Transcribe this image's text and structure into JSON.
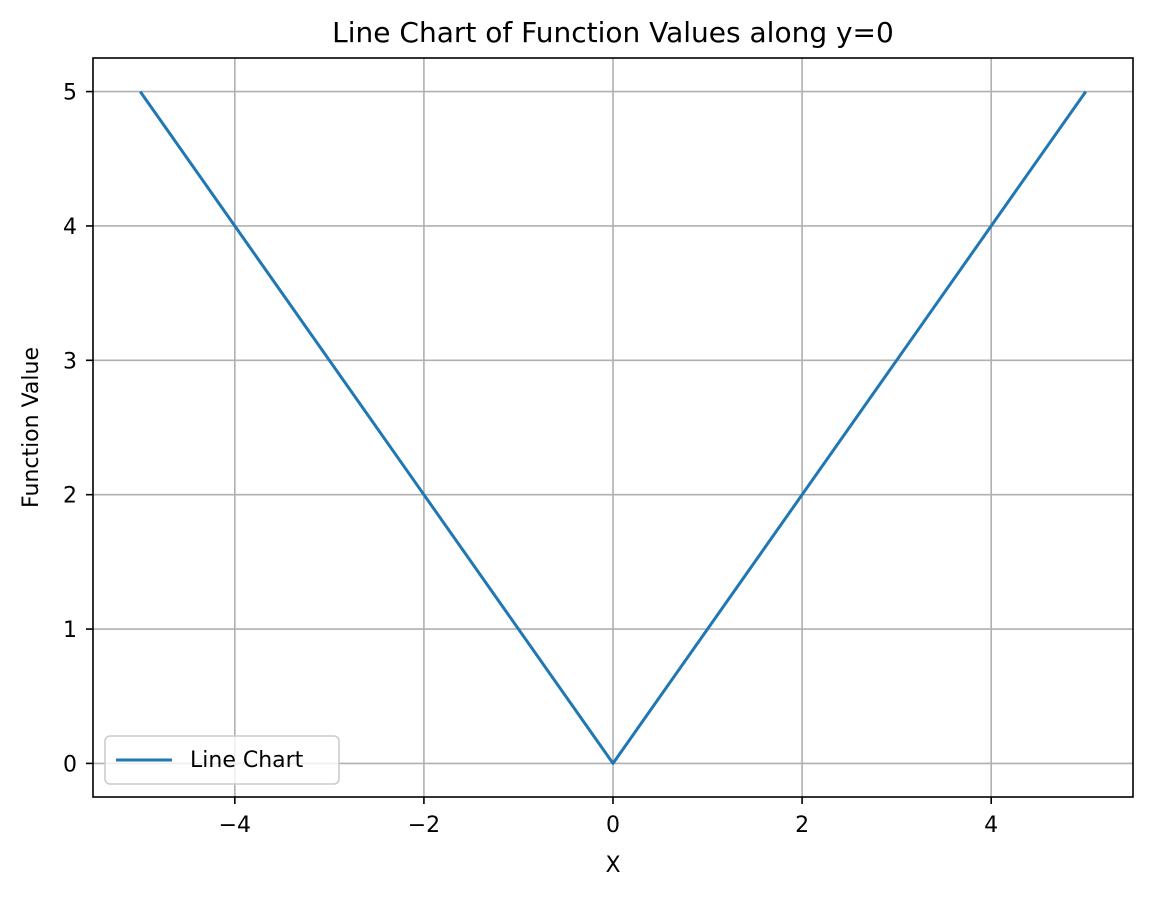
{
  "chart_data": {
    "type": "line",
    "title": "Line Chart of Function Values along y=0",
    "xlabel": "X",
    "ylabel": "Function Value",
    "xlim": [
      -5.5,
      5.5
    ],
    "ylim": [
      -0.25,
      5.25
    ],
    "xticks": [
      -4,
      -2,
      0,
      2,
      4
    ],
    "xtick_labels": [
      "−4",
      "−2",
      "0",
      "2",
      "4"
    ],
    "yticks": [
      0,
      1,
      2,
      3,
      4,
      5
    ],
    "ytick_labels": [
      "0",
      "1",
      "2",
      "3",
      "4",
      "5"
    ],
    "grid": true,
    "legend_position": "lower-left",
    "series": [
      {
        "name": "Line Chart",
        "color": "#1f77b4",
        "x": [
          -5,
          0,
          5
        ],
        "y": [
          5,
          0,
          5
        ]
      }
    ]
  }
}
